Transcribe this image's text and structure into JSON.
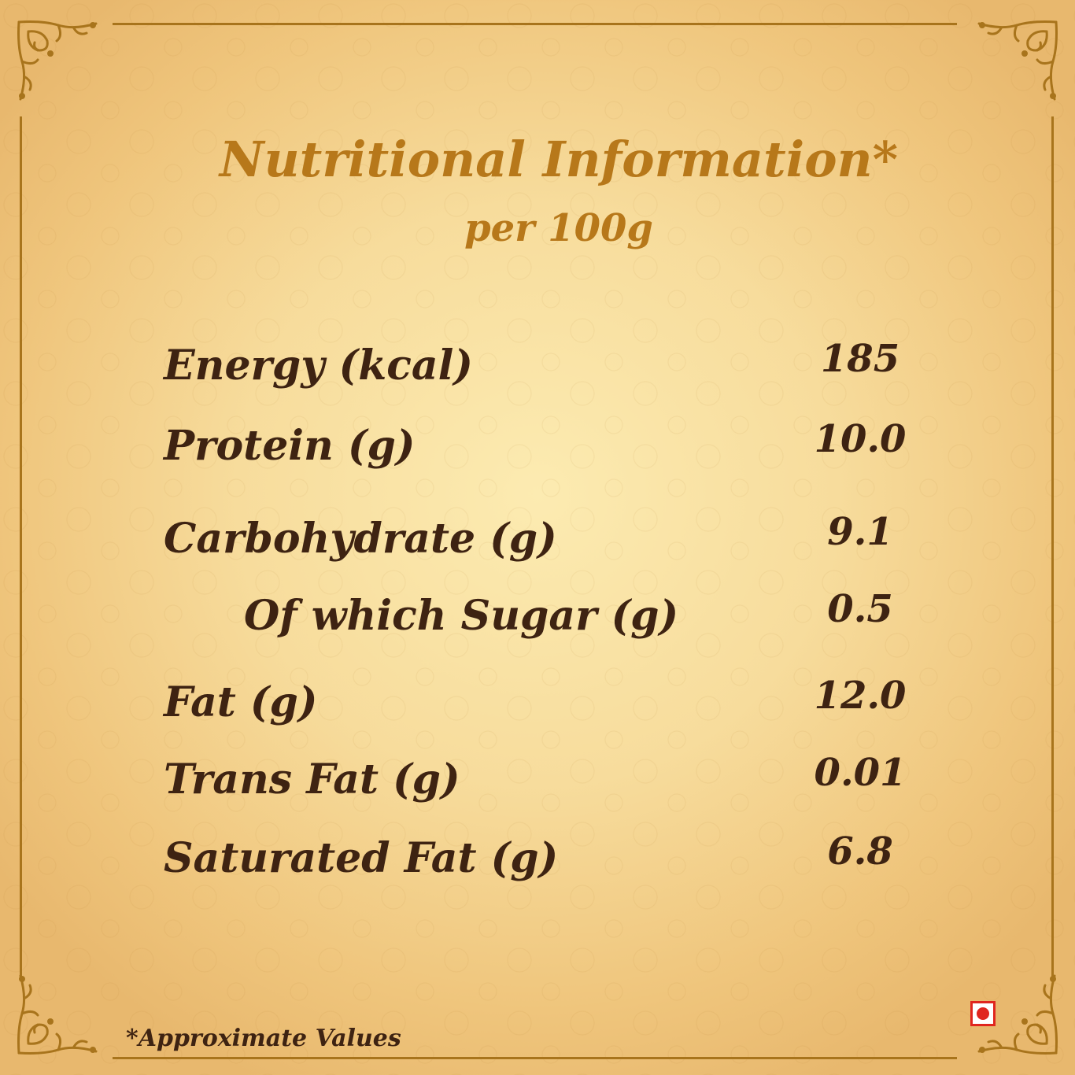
{
  "title": "Nutritional Information*",
  "subtitle": "per 100g",
  "nutrients": [
    {
      "label": "Energy (kcal)",
      "value": "185"
    },
    {
      "label": "Protein (g)",
      "value": "10.0"
    },
    {
      "label": "Carbohydrate (g)",
      "value": "9.1"
    },
    {
      "label": "Of which Sugar (g)",
      "value": "0.5"
    },
    {
      "label": "Fat (g)",
      "value": "12.0"
    },
    {
      "label": "Trans Fat (g)",
      "value": "0.01"
    },
    {
      "label": "Saturated Fat (g)",
      "value": "6.8"
    }
  ],
  "footnote": "*Approximate Values",
  "colors": {
    "title": "#b7781a",
    "text": "#3e2312",
    "border": "#a8741c",
    "veg_mark": "#e0261f"
  },
  "icons": {
    "corner": "ornamental-corner-icon",
    "mark": "red-dot-square-icon"
  }
}
